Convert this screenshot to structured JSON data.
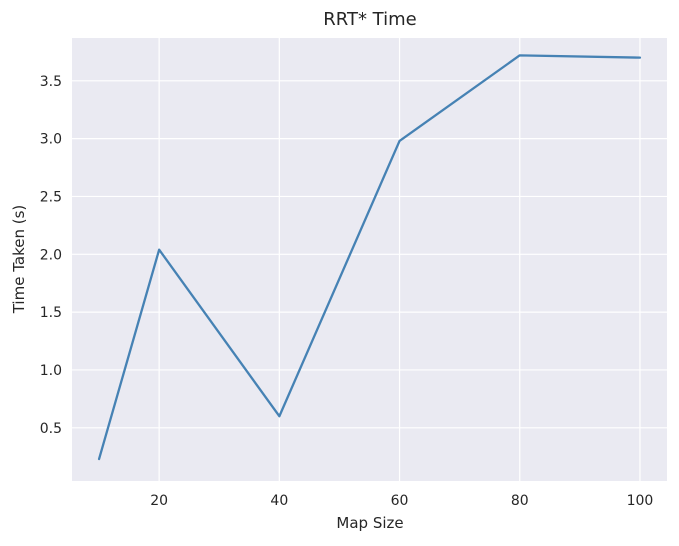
{
  "chart_data": {
    "type": "line",
    "title": "RRT* Time",
    "xlabel": "Map Size",
    "ylabel": "Time Taken (s)",
    "xlim": [
      5.5,
      104.5
    ],
    "ylim": [
      0.04,
      3.87
    ],
    "x_ticks": [
      20,
      40,
      60,
      80,
      100
    ],
    "y_ticks": [
      0.5,
      1.0,
      1.5,
      2.0,
      2.5,
      3.0,
      3.5
    ],
    "y_tick_labels": [
      "0.5",
      "1.0",
      "1.5",
      "2.0",
      "2.5",
      "3.0",
      "3.5"
    ],
    "grid": true,
    "series": [
      {
        "color": "#4682b4",
        "x": [
          10,
          20,
          40,
          60,
          80,
          100
        ],
        "y": [
          0.23,
          2.04,
          0.6,
          2.98,
          3.72,
          3.7
        ]
      }
    ]
  },
  "colors": {
    "plot_background": "#eaeaf2",
    "grid": "#ffffff",
    "text": "#262626"
  }
}
